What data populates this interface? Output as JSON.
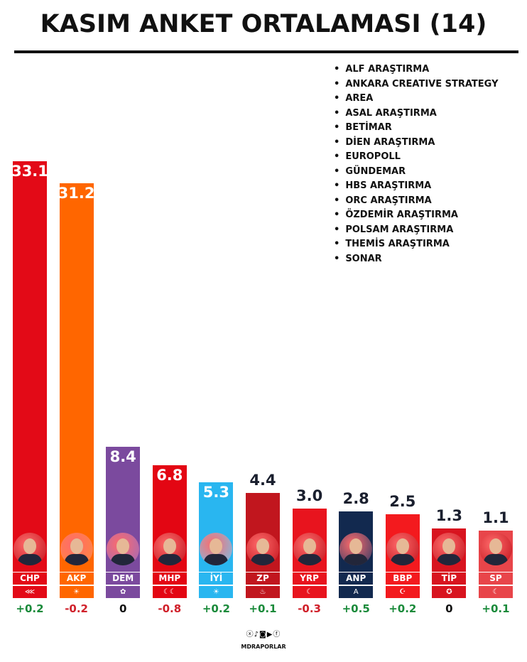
{
  "chart_data": {
    "type": "bar",
    "title": "KASIM ANKET ORTALAMASI (14)",
    "categories": [
      "CHP",
      "AKP",
      "DEM",
      "MHP",
      "İYİ",
      "ZP",
      "YRP",
      "ANP",
      "BBP",
      "TİP",
      "SP"
    ],
    "values": [
      33.1,
      31.2,
      8.4,
      6.8,
      5.3,
      4.4,
      3.0,
      2.8,
      2.5,
      1.3,
      1.1
    ],
    "value_labels": [
      "33.1",
      "31.2",
      "8.4",
      "6.8",
      "5.3",
      "4.4",
      "3.0",
      "2.8",
      "2.5",
      "1.3",
      "1.1"
    ],
    "changes": [
      "+0.2",
      "-0.2",
      "0",
      "-0.8",
      "+0.2",
      "+0.1",
      "-0.3",
      "+0.5",
      "+0.2",
      "0",
      "+0.1"
    ],
    "colors": [
      "#e30a17",
      "#ff6600",
      "#7b4a9e",
      "#e30613",
      "#29b6f0",
      "#c1161e",
      "#e8141e",
      "#12294f",
      "#f31a1e",
      "#d8141f",
      "#e8454a"
    ],
    "change_colors": {
      "positive": "#1a8a3a",
      "negative": "#d0202a",
      "zero": "#111111"
    },
    "ylim": [
      0,
      35
    ],
    "grid": false,
    "legend": "none"
  },
  "sources": [
    "ALF ARAŞTIRMA",
    "ANKARA CREATIVE STRATEGY",
    "AREA",
    "ASAL ARAŞTIRMA",
    "BETİMAR",
    "DİEN ARAŞTIRMA",
    "EUROPOLL",
    "GÜNDEMAR",
    "HBS ARAŞTIRMA",
    "ORC ARAŞTIRMA",
    "ÖZDEMİR ARAŞTIRMA",
    "POLSAM ARAŞTIRMA",
    "THEMİS ARAŞTIRMA",
    "SONAR"
  ],
  "footer": {
    "social_icons": [
      "x-icon",
      "tiktok-icon",
      "instagram-icon",
      "youtube-icon",
      "facebook-icon"
    ],
    "brand": "MDRAPORLAR"
  }
}
